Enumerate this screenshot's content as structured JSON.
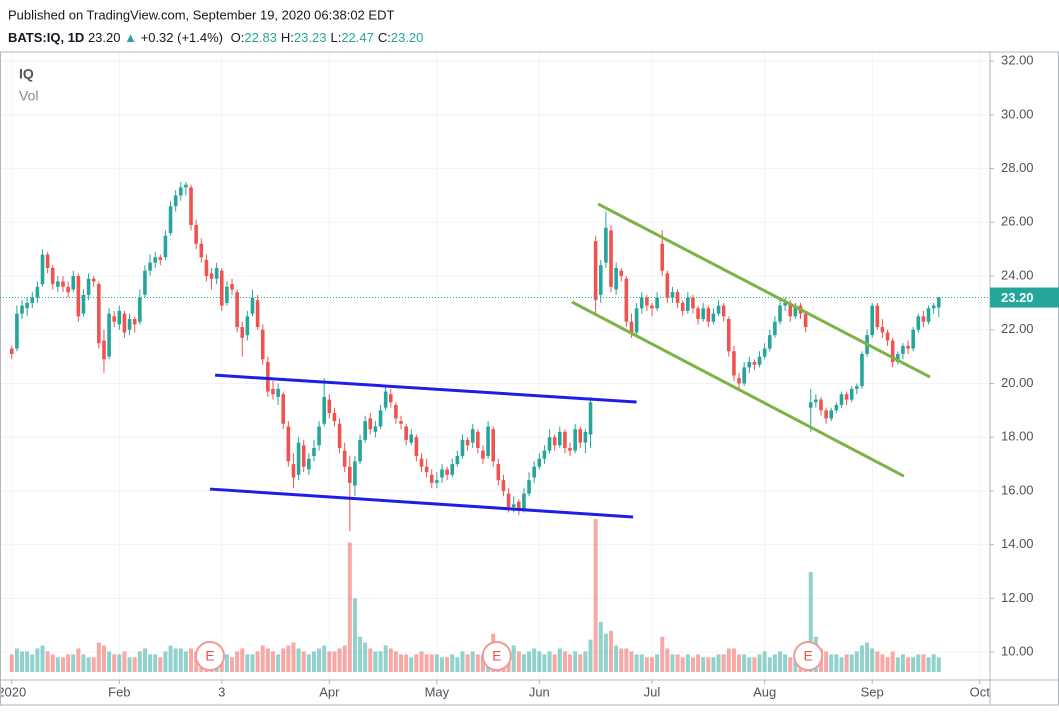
{
  "chart_data": {
    "type": "candlestick",
    "header": {
      "published": "Published on TradingView.com, September 19, 2020 06:38:02 EDT",
      "symbol": "BATS:IQ, 1D",
      "last": "23.20",
      "arrow": "▲",
      "change": "+0.32 (+1.4%)",
      "ohlc": [
        {
          "label": "O:",
          "value": "22.83"
        },
        {
          "label": "H:",
          "value": "23.23"
        },
        {
          "label": "L:",
          "value": "22.47"
        },
        {
          "label": "C:",
          "value": "23.20"
        }
      ]
    },
    "legend": [
      "IQ",
      "Vol"
    ],
    "up_color": "#26a69a",
    "down_color": "#ef5350",
    "grid": true,
    "xlim": [
      -2.3,
      191
    ],
    "xticks": [
      {
        "value": 0,
        "label": "2020"
      },
      {
        "value": 21,
        "label": "Feb"
      },
      {
        "value": 41,
        "label": "3"
      },
      {
        "value": 62,
        "label": "Apr"
      },
      {
        "value": 83,
        "label": "May"
      },
      {
        "value": 103,
        "label": "Jun"
      },
      {
        "value": 125,
        "label": "Jul"
      },
      {
        "value": 147,
        "label": "Aug"
      },
      {
        "value": 168,
        "label": "Sep"
      },
      {
        "value": 189,
        "label": "Oct"
      }
    ],
    "ylim": [
      9.26,
      32.34
    ],
    "yticks": [
      {
        "value": 10,
        "label": "10.00"
      },
      {
        "value": 12,
        "label": "12.00"
      },
      {
        "value": 14,
        "label": "14.00"
      },
      {
        "value": 16,
        "label": "16.00"
      },
      {
        "value": 18,
        "label": "18.00"
      },
      {
        "value": 20,
        "label": "20.00"
      },
      {
        "value": 22,
        "label": "22.00"
      },
      {
        "value": 24,
        "label": "24.00"
      },
      {
        "value": 26,
        "label": "26.00"
      },
      {
        "value": 28,
        "label": "28.00"
      },
      {
        "value": 30,
        "label": "30.00"
      },
      {
        "value": 32,
        "label": "32.00"
      }
    ],
    "last_price": {
      "value": 23.2,
      "label": "23.20"
    },
    "candles": [
      [
        21.3,
        21.4,
        20.9,
        21.1
      ],
      [
        21.3,
        22.9,
        21.2,
        22.6
      ],
      [
        22.6,
        23.1,
        22.4,
        22.9
      ],
      [
        22.8,
        23.2,
        22.5,
        23.0
      ],
      [
        23.0,
        23.4,
        22.8,
        23.2
      ],
      [
        23.2,
        23.8,
        23.0,
        23.6
      ],
      [
        23.7,
        25.0,
        23.6,
        24.8
      ],
      [
        24.8,
        24.9,
        24.1,
        24.3
      ],
      [
        24.3,
        24.4,
        23.5,
        23.7
      ],
      [
        23.6,
        24.0,
        23.4,
        23.8
      ],
      [
        23.8,
        24.0,
        23.4,
        23.6
      ],
      [
        23.6,
        23.8,
        23.2,
        23.4
      ],
      [
        23.5,
        24.2,
        23.4,
        24.0
      ],
      [
        24.0,
        24.1,
        22.3,
        22.5
      ],
      [
        22.6,
        23.5,
        22.5,
        23.3
      ],
      [
        23.3,
        24.1,
        23.1,
        23.9
      ],
      [
        23.9,
        24.0,
        23.6,
        23.8
      ],
      [
        23.7,
        23.8,
        21.3,
        21.5
      ],
      [
        21.6,
        22.0,
        20.4,
        20.9
      ],
      [
        21.0,
        22.8,
        20.9,
        22.6
      ],
      [
        22.5,
        22.7,
        22.1,
        22.3
      ],
      [
        22.2,
        22.9,
        22.0,
        22.7
      ],
      [
        22.6,
        22.7,
        21.7,
        21.9
      ],
      [
        22.0,
        22.6,
        21.8,
        22.4
      ],
      [
        22.4,
        22.5,
        21.9,
        22.2
      ],
      [
        22.3,
        23.5,
        22.2,
        23.2
      ],
      [
        23.3,
        24.4,
        23.2,
        24.2
      ],
      [
        24.2,
        24.8,
        24.0,
        24.5
      ],
      [
        24.5,
        24.9,
        24.3,
        24.7
      ],
      [
        24.7,
        24.8,
        24.4,
        24.6
      ],
      [
        24.7,
        25.7,
        24.6,
        25.5
      ],
      [
        25.6,
        26.8,
        25.5,
        26.6
      ],
      [
        26.6,
        27.2,
        26.4,
        27.0
      ],
      [
        27.0,
        27.5,
        26.8,
        27.3
      ],
      [
        27.3,
        27.5,
        27.0,
        27.4
      ],
      [
        27.3,
        27.4,
        25.7,
        25.9
      ],
      [
        25.9,
        26.1,
        25.0,
        25.2
      ],
      [
        25.2,
        25.4,
        24.5,
        24.7
      ],
      [
        24.6,
        24.8,
        23.8,
        24.0
      ],
      [
        24.1,
        24.3,
        23.5,
        23.9
      ],
      [
        23.9,
        24.5,
        23.7,
        24.3
      ],
      [
        24.2,
        24.3,
        22.7,
        22.9
      ],
      [
        23.0,
        23.8,
        22.9,
        23.6
      ],
      [
        23.7,
        23.9,
        23.3,
        23.5
      ],
      [
        23.4,
        23.5,
        21.9,
        22.1
      ],
      [
        22.1,
        22.3,
        21.0,
        21.7
      ],
      [
        21.8,
        22.7,
        21.6,
        22.5
      ],
      [
        22.6,
        23.5,
        22.5,
        23.2
      ],
      [
        23.1,
        23.3,
        22.0,
        22.1
      ],
      [
        22.0,
        22.2,
        20.7,
        20.9
      ],
      [
        20.8,
        21.0,
        19.5,
        19.7
      ],
      [
        19.8,
        20.1,
        19.4,
        19.6
      ],
      [
        19.5,
        20.0,
        19.2,
        19.8
      ],
      [
        19.6,
        19.7,
        18.3,
        18.5
      ],
      [
        18.4,
        18.6,
        16.9,
        17.1
      ],
      [
        17.0,
        17.4,
        16.1,
        16.5
      ],
      [
        16.6,
        18.0,
        16.4,
        17.8
      ],
      [
        17.7,
        17.9,
        16.7,
        16.9
      ],
      [
        16.8,
        17.4,
        16.6,
        17.2
      ],
      [
        17.3,
        17.9,
        17.1,
        17.6
      ],
      [
        17.7,
        18.6,
        17.5,
        18.4
      ],
      [
        18.5,
        20.2,
        18.4,
        19.5
      ],
      [
        19.4,
        19.6,
        18.7,
        18.9
      ],
      [
        18.9,
        19.1,
        18.4,
        18.6
      ],
      [
        18.5,
        18.7,
        17.4,
        17.6
      ],
      [
        17.5,
        17.8,
        16.7,
        16.9
      ],
      [
        16.9,
        17.3,
        14.5,
        16.3
      ],
      [
        16.2,
        17.3,
        15.8,
        17.1
      ],
      [
        17.1,
        18.1,
        17.0,
        17.9
      ],
      [
        17.9,
        18.8,
        17.8,
        18.6
      ],
      [
        18.7,
        18.9,
        18.1,
        18.3
      ],
      [
        18.2,
        18.6,
        18.0,
        18.4
      ],
      [
        18.4,
        19.2,
        18.3,
        19.0
      ],
      [
        19.1,
        19.9,
        19.0,
        19.7
      ],
      [
        19.6,
        19.8,
        19.1,
        19.3
      ],
      [
        19.2,
        19.3,
        18.5,
        18.7
      ],
      [
        18.6,
        18.8,
        18.3,
        18.5
      ],
      [
        18.4,
        18.5,
        17.7,
        17.9
      ],
      [
        17.8,
        18.3,
        17.7,
        18.1
      ],
      [
        18.0,
        18.1,
        17.1,
        17.3
      ],
      [
        17.2,
        17.4,
        16.7,
        16.9
      ],
      [
        16.9,
        17.2,
        16.5,
        16.7
      ],
      [
        16.6,
        16.8,
        16.1,
        16.3
      ],
      [
        16.3,
        16.7,
        16.1,
        16.4
      ],
      [
        16.5,
        17.0,
        16.3,
        16.8
      ],
      [
        16.8,
        16.9,
        16.4,
        16.6
      ],
      [
        16.6,
        17.2,
        16.5,
        17.0
      ],
      [
        17.0,
        17.5,
        16.9,
        17.3
      ],
      [
        17.3,
        18.1,
        17.2,
        17.9
      ],
      [
        17.9,
        18.0,
        17.5,
        17.7
      ],
      [
        17.8,
        18.5,
        17.6,
        18.3
      ],
      [
        18.2,
        18.3,
        17.4,
        17.6
      ],
      [
        17.5,
        17.7,
        17.0,
        17.2
      ],
      [
        17.3,
        18.6,
        17.2,
        18.4
      ],
      [
        18.3,
        18.4,
        16.9,
        17.1
      ],
      [
        17.0,
        17.2,
        16.2,
        16.4
      ],
      [
        16.4,
        16.6,
        15.8,
        16.0
      ],
      [
        15.9,
        16.1,
        15.2,
        15.4
      ],
      [
        15.4,
        15.8,
        15.2,
        15.5
      ],
      [
        15.6,
        15.7,
        15.1,
        15.3
      ],
      [
        15.3,
        16.1,
        15.2,
        15.9
      ],
      [
        15.9,
        16.7,
        15.8,
        16.4
      ],
      [
        16.5,
        17.1,
        16.3,
        16.9
      ],
      [
        16.9,
        17.4,
        16.8,
        17.2
      ],
      [
        17.2,
        17.7,
        17.0,
        17.5
      ],
      [
        17.5,
        18.3,
        17.4,
        18.0
      ],
      [
        18.0,
        18.1,
        17.5,
        17.7
      ],
      [
        17.7,
        18.4,
        17.6,
        18.2
      ],
      [
        18.2,
        18.3,
        17.4,
        17.6
      ],
      [
        17.6,
        17.8,
        17.3,
        17.5
      ],
      [
        17.5,
        18.5,
        17.4,
        18.3
      ],
      [
        18.3,
        18.4,
        17.6,
        17.8
      ],
      [
        17.8,
        18.3,
        17.4,
        18.2
      ],
      [
        18.1,
        19.5,
        17.6,
        19.3
      ],
      [
        25.3,
        25.5,
        22.6,
        23.1
      ],
      [
        23.3,
        24.6,
        23.0,
        24.4
      ],
      [
        24.5,
        26.4,
        24.3,
        25.8
      ],
      [
        25.7,
        25.9,
        23.4,
        23.6
      ],
      [
        23.5,
        24.5,
        23.3,
        24.3
      ],
      [
        24.2,
        24.3,
        23.8,
        24.0
      ],
      [
        23.9,
        24.0,
        22.1,
        22.3
      ],
      [
        22.3,
        22.6,
        21.7,
        21.9
      ],
      [
        21.9,
        23.0,
        21.8,
        22.8
      ],
      [
        22.8,
        23.4,
        22.6,
        23.2
      ],
      [
        23.2,
        23.3,
        22.7,
        22.9
      ],
      [
        22.9,
        23.0,
        22.5,
        22.8
      ],
      [
        22.8,
        23.4,
        22.7,
        23.2
      ],
      [
        25.2,
        25.7,
        24.0,
        24.2
      ],
      [
        24.1,
        24.2,
        23.0,
        23.2
      ],
      [
        23.2,
        23.6,
        23.0,
        23.4
      ],
      [
        23.4,
        23.5,
        22.8,
        23.0
      ],
      [
        23.0,
        23.1,
        22.5,
        22.7
      ],
      [
        22.7,
        23.4,
        22.6,
        23.2
      ],
      [
        23.2,
        23.3,
        22.6,
        22.8
      ],
      [
        22.8,
        22.9,
        22.2,
        22.4
      ],
      [
        22.4,
        23.0,
        22.3,
        22.8
      ],
      [
        22.8,
        22.9,
        22.1,
        22.3
      ],
      [
        22.3,
        22.8,
        22.2,
        22.6
      ],
      [
        22.6,
        23.1,
        22.5,
        22.9
      ],
      [
        22.9,
        23.0,
        22.3,
        22.5
      ],
      [
        22.4,
        22.5,
        21.0,
        21.2
      ],
      [
        21.2,
        21.4,
        20.1,
        20.3
      ],
      [
        20.2,
        20.4,
        19.7,
        20.0
      ],
      [
        20.0,
        20.8,
        19.9,
        20.6
      ],
      [
        20.6,
        21.0,
        20.4,
        20.8
      ],
      [
        20.8,
        20.9,
        20.5,
        20.7
      ],
      [
        20.7,
        21.2,
        20.6,
        21.0
      ],
      [
        21.0,
        21.5,
        20.9,
        21.3
      ],
      [
        21.3,
        22.0,
        21.2,
        21.8
      ],
      [
        21.8,
        22.5,
        21.7,
        22.3
      ],
      [
        22.3,
        23.1,
        22.2,
        22.9
      ],
      [
        22.9,
        23.2,
        22.7,
        23.0
      ],
      [
        23.0,
        23.1,
        22.3,
        22.5
      ],
      [
        22.5,
        23.0,
        22.4,
        22.9
      ],
      [
        22.9,
        23.0,
        22.4,
        22.6
      ],
      [
        22.6,
        22.7,
        21.9,
        22.1
      ],
      [
        19.1,
        19.8,
        18.2,
        19.3
      ],
      [
        19.3,
        19.6,
        19.1,
        19.4
      ],
      [
        19.4,
        19.5,
        18.8,
        19.0
      ],
      [
        19.0,
        19.1,
        18.5,
        18.7
      ],
      [
        18.7,
        19.1,
        18.6,
        19.0
      ],
      [
        19.0,
        19.3,
        18.9,
        19.2
      ],
      [
        19.2,
        19.7,
        19.1,
        19.6
      ],
      [
        19.6,
        19.7,
        19.2,
        19.4
      ],
      [
        19.4,
        19.9,
        19.3,
        19.8
      ],
      [
        19.8,
        20.0,
        19.6,
        19.9
      ],
      [
        19.9,
        21.2,
        19.8,
        21.1
      ],
      [
        21.1,
        22.0,
        21.0,
        21.8
      ],
      [
        21.8,
        23.0,
        21.7,
        22.9
      ],
      [
        22.9,
        23.0,
        22.0,
        22.1
      ],
      [
        22.1,
        22.4,
        21.7,
        21.9
      ],
      [
        21.9,
        22.0,
        21.4,
        21.6
      ],
      [
        21.6,
        21.7,
        20.6,
        20.8
      ],
      [
        20.8,
        21.2,
        20.7,
        21.1
      ],
      [
        21.1,
        21.5,
        20.9,
        21.4
      ],
      [
        21.4,
        21.6,
        21.1,
        21.3
      ],
      [
        21.3,
        22.1,
        21.2,
        22.0
      ],
      [
        22.0,
        22.6,
        21.9,
        22.5
      ],
      [
        22.5,
        22.7,
        22.1,
        22.3
      ],
      [
        22.3,
        22.9,
        22.2,
        22.8
      ],
      [
        22.8,
        23.0,
        22.6,
        22.9
      ],
      [
        22.83,
        23.23,
        22.47,
        23.2
      ]
    ],
    "volume": [
      6,
      8,
      7,
      7,
      6,
      8,
      9,
      7,
      6,
      5,
      5,
      6,
      6,
      8,
      6,
      5,
      5,
      10,
      9,
      7,
      6,
      6,
      7,
      5,
      5,
      7,
      8,
      6,
      6,
      5,
      7,
      9,
      8,
      8,
      7,
      8,
      7,
      6,
      6,
      7,
      6,
      7,
      6,
      5,
      7,
      8,
      6,
      6,
      7,
      9,
      8,
      7,
      6,
      8,
      9,
      10,
      8,
      7,
      6,
      7,
      8,
      9,
      7,
      7,
      8,
      9,
      44,
      25,
      12,
      10,
      8,
      7,
      7,
      9,
      8,
      7,
      6,
      6,
      5,
      6,
      7,
      6,
      6,
      6,
      5,
      5,
      6,
      5,
      7,
      6,
      7,
      6,
      6,
      9,
      13,
      10,
      8,
      7,
      9,
      7,
      6,
      7,
      8,
      7,
      6,
      7,
      6,
      8,
      7,
      6,
      7,
      6,
      7,
      11,
      52,
      17,
      13,
      14,
      9,
      8,
      8,
      7,
      6,
      6,
      5,
      5,
      6,
      12,
      8,
      6,
      6,
      5,
      6,
      5,
      6,
      5,
      5,
      5,
      6,
      6,
      8,
      8,
      6,
      6,
      5,
      5,
      6,
      7,
      5,
      6,
      7,
      6,
      5,
      5,
      4,
      5,
      34,
      12,
      8,
      7,
      6,
      6,
      5,
      6,
      6,
      7,
      9,
      10,
      8,
      7,
      6,
      5,
      7,
      5,
      6,
      5,
      5,
      6,
      6,
      5,
      6,
      5
    ],
    "drawings": [
      {
        "color": "#1e1ee6",
        "points": [
          [
            39.7,
            20.31
          ],
          [
            122,
            19.31
          ]
        ]
      },
      {
        "color": "#1e1ee6",
        "points": [
          [
            38.7,
            16.07
          ],
          [
            121.3,
            15.03
          ]
        ]
      },
      {
        "color": "#7cb342",
        "points": [
          [
            114.5,
            26.68
          ],
          [
            179.3,
            20.24
          ]
        ]
      },
      {
        "color": "#7cb342",
        "points": [
          [
            109.4,
            23.03
          ],
          [
            174.2,
            16.55
          ]
        ]
      }
    ],
    "events": [
      {
        "x": 38.7,
        "label": "E"
      },
      {
        "x": 94.7,
        "label": "E"
      },
      {
        "x": 155.5,
        "label": "E"
      }
    ]
  }
}
